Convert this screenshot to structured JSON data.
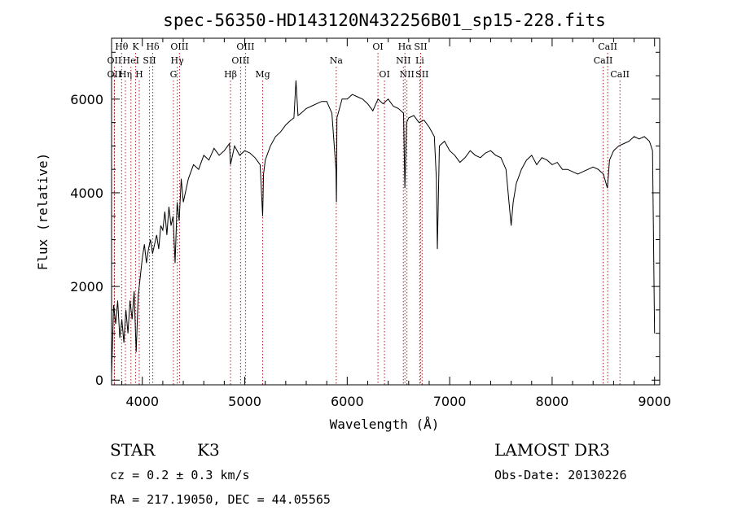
{
  "chart_data": {
    "type": "line",
    "title": "spec-56350-HD143120N432256B01_sp15-228.fits",
    "xlabel": "Wavelength (Å)",
    "ylabel": "Flux (relative)",
    "xlim": [
      3700,
      9050
    ],
    "ylim": [
      -100,
      7300
    ],
    "xticks": [
      4000,
      5000,
      6000,
      7000,
      8000,
      9000
    ],
    "yticks": [
      0,
      2000,
      4000,
      6000
    ],
    "grid": false,
    "series": [
      {
        "values_x": [
          3700,
          3720,
          3740,
          3760,
          3780,
          3800,
          3820,
          3840,
          3860,
          3880,
          3900,
          3920,
          3940,
          3960,
          3980,
          4000,
          4020,
          4040,
          4060,
          4080,
          4100,
          4120,
          4140,
          4160,
          4180,
          4200,
          4220,
          4240,
          4260,
          4280,
          4300,
          4320,
          4340,
          4360,
          4380,
          4400,
          4450,
          4500,
          4550,
          4600,
          4650,
          4700,
          4750,
          4800,
          4850,
          4861,
          4900,
          4950,
          5000,
          5050,
          5100,
          5150,
          5175,
          5183,
          5200,
          5250,
          5300,
          5350,
          5400,
          5450,
          5480,
          5500,
          5520,
          5550,
          5600,
          5650,
          5700,
          5750,
          5800,
          5850,
          5890,
          5895,
          5900,
          5950,
          6000,
          6050,
          6100,
          6150,
          6200,
          6250,
          6300,
          6350,
          6400,
          6450,
          6500,
          6550,
          6563,
          6580,
          6600,
          6650,
          6700,
          6750,
          6800,
          6850,
          6870,
          6880,
          6900,
          6950,
          7000,
          7050,
          7100,
          7150,
          7200,
          7250,
          7300,
          7350,
          7400,
          7450,
          7500,
          7550,
          7600,
          7620,
          7650,
          7700,
          7750,
          7800,
          7850,
          7900,
          7950,
          8000,
          8050,
          8100,
          8150,
          8200,
          8250,
          8300,
          8350,
          8400,
          8450,
          8500,
          8540,
          8560,
          8600,
          8650,
          8700,
          8750,
          8800,
          8850,
          8900,
          8950,
          8980,
          9000
        ],
        "values_y": [
          100,
          1600,
          1200,
          1700,
          900,
          1300,
          800,
          1500,
          1000,
          1700,
          1300,
          1900,
          600,
          1800,
          2200,
          2600,
          2900,
          2500,
          2800,
          3000,
          2700,
          2900,
          3100,
          2800,
          3300,
          3200,
          3600,
          3100,
          3700,
          3300,
          3500,
          2500,
          3800,
          3400,
          4300,
          3800,
          4300,
          4600,
          4500,
          4800,
          4700,
          4950,
          4800,
          4900,
          5050,
          4600,
          5000,
          4800,
          4900,
          4850,
          4750,
          4600,
          3500,
          4400,
          4700,
          5000,
          5200,
          5300,
          5450,
          5550,
          5600,
          6400,
          5650,
          5700,
          5800,
          5850,
          5900,
          5950,
          5950,
          5700,
          4500,
          3800,
          5600,
          6000,
          6000,
          6100,
          6050,
          6000,
          5900,
          5750,
          6000,
          5900,
          6000,
          5850,
          5800,
          5700,
          4100,
          5500,
          5600,
          5650,
          5500,
          5550,
          5400,
          5200,
          4300,
          2800,
          5000,
          5100,
          4900,
          4800,
          4650,
          4750,
          4900,
          4800,
          4750,
          4850,
          4900,
          4800,
          4750,
          4500,
          3300,
          3800,
          4200,
          4500,
          4700,
          4800,
          4600,
          4750,
          4700,
          4600,
          4650,
          4500,
          4500,
          4450,
          4400,
          4450,
          4500,
          4550,
          4500,
          4400,
          4100,
          4700,
          4900,
          5000,
          5050,
          5100,
          5200,
          5150,
          5200,
          5100,
          4900,
          1000
        ]
      }
    ],
    "lines": [
      {
        "label": "Hθ",
        "x": 3798,
        "row": 0
      },
      {
        "label": "OII",
        "x": 3727,
        "row": 1
      },
      {
        "label": "OII",
        "x": 3727,
        "row": 2
      },
      {
        "label": "Hη",
        "x": 3835,
        "row": 2
      },
      {
        "label": "K",
        "x": 3934,
        "row": 0
      },
      {
        "label": "HeI",
        "x": 3889,
        "row": 1
      },
      {
        "label": "H",
        "x": 3970,
        "row": 2
      },
      {
        "label": "Hδ",
        "x": 4102,
        "row": 0
      },
      {
        "label": "SII",
        "x": 4070,
        "row": 1
      },
      {
        "label": "OIII",
        "x": 4363,
        "row": 0
      },
      {
        "label": "Hγ",
        "x": 4341,
        "row": 1
      },
      {
        "label": "G",
        "x": 4304,
        "row": 2
      },
      {
        "label": "OIII",
        "x": 5007,
        "row": 0
      },
      {
        "label": "OIII",
        "x": 4959,
        "row": 1
      },
      {
        "label": "Hβ",
        "x": 4861,
        "row": 2
      },
      {
        "label": "Mg",
        "x": 5175,
        "row": 2
      },
      {
        "label": "Na",
        "x": 5893,
        "row": 1
      },
      {
        "label": "OI",
        "x": 6300,
        "row": 0
      },
      {
        "label": "OI",
        "x": 6364,
        "row": 2
      },
      {
        "label": "Hα",
        "x": 6563,
        "row": 0
      },
      {
        "label": "NII",
        "x": 6548,
        "row": 1
      },
      {
        "label": "NII",
        "x": 6583,
        "row": 2
      },
      {
        "label": "SII",
        "x": 6717,
        "row": 0
      },
      {
        "label": "Li",
        "x": 6708,
        "row": 1
      },
      {
        "label": "SII",
        "x": 6731,
        "row": 2
      },
      {
        "label": "CaII",
        "x": 8542,
        "row": 0
      },
      {
        "label": "CaII",
        "x": 8498,
        "row": 1
      },
      {
        "label": "CaII",
        "x": 8662,
        "row": 2
      }
    ]
  },
  "info": {
    "class_label": "STAR",
    "subclass": "K3",
    "survey": "LAMOST DR3",
    "cz": "cz = 0.2 ± 0.3 km/s",
    "obs_date": "Obs-Date: 20130226",
    "coords": "RA = 217.19050, DEC =  44.05565"
  },
  "colors": {
    "spectrum": "#000000",
    "line_markers": "#b22222",
    "axes": "#000000",
    "background": "#ffffff"
  }
}
